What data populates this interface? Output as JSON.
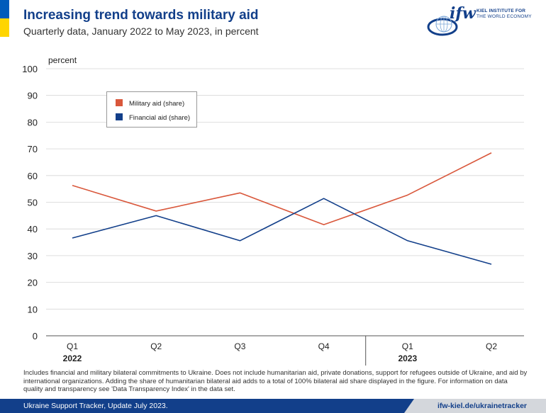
{
  "header": {
    "title": "Increasing trend towards military aid",
    "subtitle": "Quarterly data, January 2022 to May 2023, in percent"
  },
  "logo": {
    "mark": "ifw",
    "line1": "KIEL INSTITUTE FOR",
    "line2": "THE WORLD ECONOMY"
  },
  "colors": {
    "military": "#d9573b",
    "financial": "#123f8a",
    "flag_blue": "#005bbb",
    "flag_yellow": "#ffd500"
  },
  "chart_data": {
    "type": "line",
    "ylabel": "percent",
    "ylim": [
      0,
      100
    ],
    "yticks": [
      "0",
      "10",
      "20",
      "30",
      "40",
      "50",
      "60",
      "70",
      "80",
      "90",
      "100"
    ],
    "categories": [
      "Q1",
      "Q2",
      "Q3",
      "Q4",
      "Q1",
      "Q2"
    ],
    "years": [
      {
        "label": "2022",
        "quarters": 4
      },
      {
        "label": "2023",
        "quarters": 2
      }
    ],
    "grid": true,
    "legend_position": "top-left",
    "series": [
      {
        "name": "Military aid (share)",
        "values": [
          56.3,
          46.7,
          53.5,
          41.6,
          52.7,
          68.5
        ]
      },
      {
        "name": "Financial aid (share)",
        "values": [
          36.6,
          45.0,
          35.6,
          51.4,
          35.6,
          26.8
        ]
      }
    ]
  },
  "note": "Includes financial and military bilateral commitments to Ukraine. Does not include humanitarian aid, private donations, support for refugees outside of Ukraine, and aid by international organizations. Adding the share of humanitarian bilateral aid adds to a total of 100% bilateral aid share displayed in the figure. For information on data quality and transparency see 'Data Transparency Index' in the data set.",
  "footer": {
    "left": "Ukraine Support Tracker, Update July 2023.",
    "right": "ifw-kiel.de/ukrainetracker"
  }
}
